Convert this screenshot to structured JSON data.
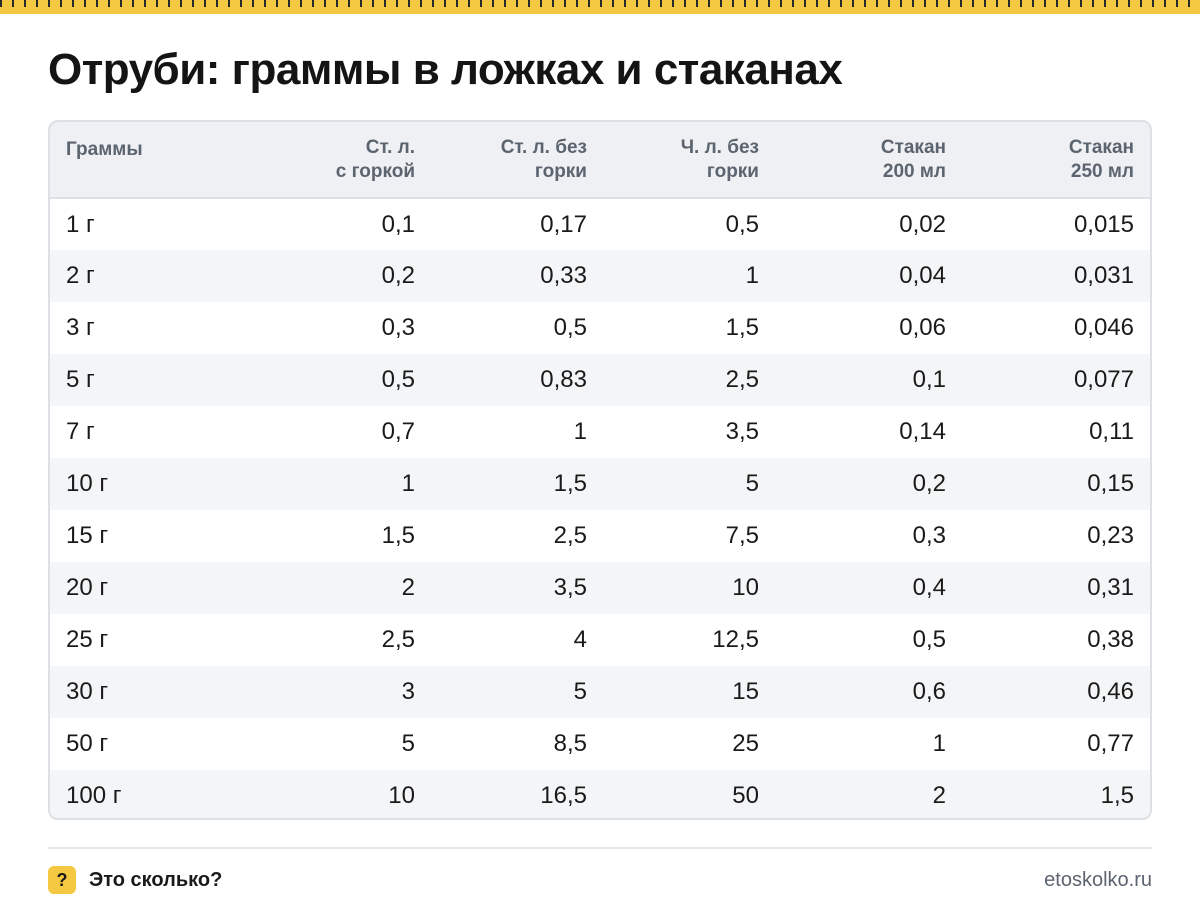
{
  "title": "Отруби: граммы в ложках и стаканах",
  "colors": {
    "accent": "#f5c842",
    "header_bg": "#eef0f3",
    "stripe_bg": "#f4f5f7",
    "header_text": "#5c6470"
  },
  "table": {
    "headers": [
      [
        "Граммы"
      ],
      [
        "Ст. л.",
        "с горкой"
      ],
      [
        "Ст. л. без",
        "горки"
      ],
      [
        "Ч. л. без",
        "горки"
      ],
      [
        "Стакан",
        "200 мл"
      ],
      [
        "Стакан",
        "250 мл"
      ]
    ],
    "rows": [
      [
        "1 г",
        "0,1",
        "0,17",
        "0,5",
        "0,02",
        "0,015"
      ],
      [
        "2 г",
        "0,2",
        "0,33",
        "1",
        "0,04",
        "0,031"
      ],
      [
        "3 г",
        "0,3",
        "0,5",
        "1,5",
        "0,06",
        "0,046"
      ],
      [
        "5 г",
        "0,5",
        "0,83",
        "2,5",
        "0,1",
        "0,077"
      ],
      [
        "7 г",
        "0,7",
        "1",
        "3,5",
        "0,14",
        "0,11"
      ],
      [
        "10 г",
        "1",
        "1,5",
        "5",
        "0,2",
        "0,15"
      ],
      [
        "15 г",
        "1,5",
        "2,5",
        "7,5",
        "0,3",
        "0,23"
      ],
      [
        "20 г",
        "2",
        "3,5",
        "10",
        "0,4",
        "0,31"
      ],
      [
        "25 г",
        "2,5",
        "4",
        "12,5",
        "0,5",
        "0,38"
      ],
      [
        "30 г",
        "3",
        "5",
        "15",
        "0,6",
        "0,46"
      ],
      [
        "50 г",
        "5",
        "8,5",
        "25",
        "1",
        "0,77"
      ],
      [
        "100 г",
        "10",
        "16,5",
        "50",
        "2",
        "1,5"
      ]
    ]
  },
  "footer": {
    "badge": "?",
    "brand": "Это сколько?",
    "site": "etoskolko.ru"
  }
}
